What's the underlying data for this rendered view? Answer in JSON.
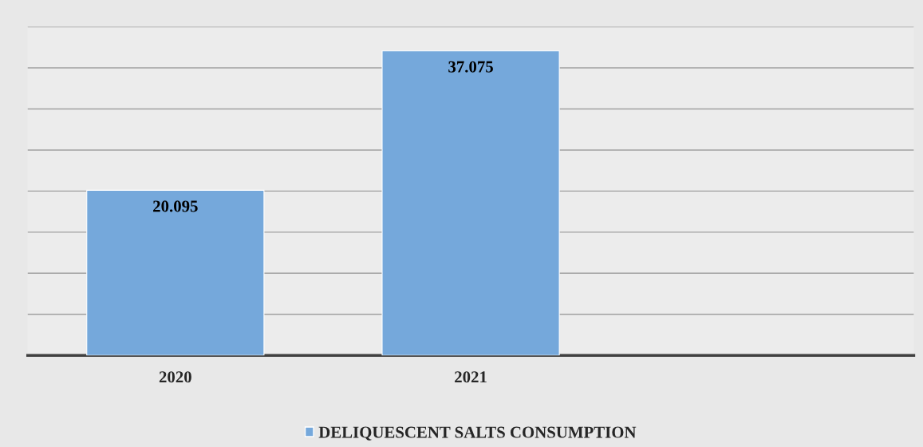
{
  "chart_data": {
    "type": "bar",
    "categories": [
      "2020",
      "2021",
      null
    ],
    "series": [
      {
        "name": "DELIQUESCENT SALTS CONSUMPTION",
        "color": "#75a8db",
        "values": [
          20.095,
          37.075,
          null
        ]
      }
    ],
    "ylim": [
      0,
      40
    ],
    "yticks": [
      {
        "value": 0,
        "label": null
      },
      {
        "value": 5,
        "label": null
      },
      {
        "value": 10,
        "label": null
      },
      {
        "value": 15,
        "label": null
      },
      {
        "value": 20,
        "label": null
      },
      {
        "value": 25,
        "label": null
      },
      {
        "value": 30,
        "label": null
      },
      {
        "value": 35,
        "label": null
      },
      {
        "value": 40,
        "label": null
      }
    ],
    "tick_labels": "x",
    "grid": "y",
    "legend": "bottom",
    "data_labels": true
  }
}
